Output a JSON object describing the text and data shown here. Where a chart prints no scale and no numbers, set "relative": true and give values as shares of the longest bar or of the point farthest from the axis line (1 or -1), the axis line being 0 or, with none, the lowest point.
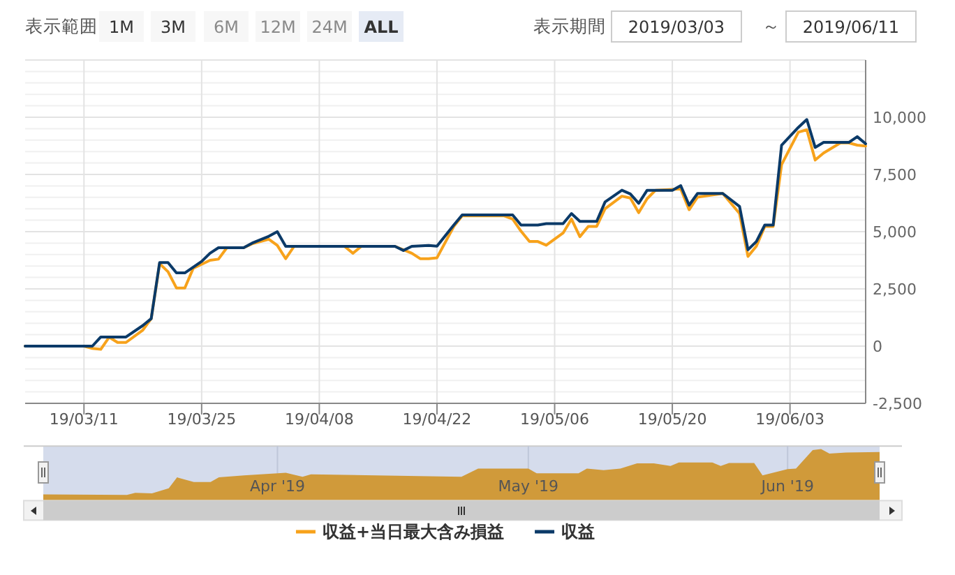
{
  "chart_data": [
    {
      "type": "line",
      "grid": true,
      "legend": "bottom",
      "annotations": [
        "表示範囲",
        "1M",
        "3M",
        "6M",
        "12M",
        "24M",
        "ALL",
        "表示期間",
        "2019/03/03",
        "～",
        "2019/06/11"
      ],
      "xlim": [
        "2019-03-04",
        "2019-06-12"
      ],
      "xticks": [
        {
          "value": "2019-03-11",
          "label": "19/03/11"
        },
        {
          "value": "2019-03-25",
          "label": "19/03/25"
        },
        {
          "value": "2019-04-08",
          "label": "19/04/08"
        },
        {
          "value": "2019-04-22",
          "label": "19/04/22"
        },
        {
          "value": "2019-05-06",
          "label": "19/05/06"
        },
        {
          "value": "2019-05-20",
          "label": "19/05/20"
        },
        {
          "value": "2019-06-03",
          "label": "19/06/03"
        }
      ],
      "ylim": [
        -2500,
        12500
      ],
      "yticks": [
        {
          "value": -2500,
          "label": "-2,500"
        },
        0,
        {
          "value": 2500,
          "label": "2,500"
        },
        {
          "value": 5000,
          "label": "5,000"
        },
        {
          "value": 7500,
          "label": "7,500"
        },
        {
          "value": 10000,
          "label": "10,000"
        },
        {
          "value": 12500,
          "label": null
        }
      ],
      "series": [
        {
          "name": "収益+当日最大含み損益",
          "color": "#f7a21b",
          "x": [
            "2019-03-04",
            "2019-03-11",
            "2019-03-12",
            "2019-03-13",
            "2019-03-14",
            "2019-03-15",
            "2019-03-16",
            "2019-03-18",
            "2019-03-19",
            "2019-03-20",
            "2019-03-21",
            "2019-03-22",
            "2019-03-23",
            "2019-03-24",
            "2019-03-26",
            "2019-03-27",
            "2019-03-28",
            "2019-03-30",
            "2019-03-31",
            "2019-04-02",
            "2019-04-03",
            "2019-04-04",
            "2019-04-05",
            "2019-04-11",
            "2019-04-12",
            "2019-04-13",
            "2019-04-17",
            "2019-04-19",
            "2019-04-20",
            "2019-04-21",
            "2019-04-22",
            "2019-04-24",
            "2019-04-25",
            "2019-04-30",
            "2019-05-01",
            "2019-05-02",
            "2019-05-03",
            "2019-05-04",
            "2019-05-05",
            "2019-05-07",
            "2019-05-08",
            "2019-05-09",
            "2019-05-10",
            "2019-05-11",
            "2019-05-12",
            "2019-05-14",
            "2019-05-15",
            "2019-05-16",
            "2019-05-17",
            "2019-05-18",
            "2019-05-21",
            "2019-05-22",
            "2019-05-23",
            "2019-05-26",
            "2019-05-28",
            "2019-05-29",
            "2019-05-30",
            "2019-05-31",
            "2019-06-01",
            "2019-06-02",
            "2019-06-04",
            "2019-06-05",
            "2019-06-06",
            "2019-06-07",
            "2019-06-09",
            "2019-06-10",
            "2019-06-11",
            "2019-06-12"
          ],
          "values": [
            0,
            0,
            -100,
            -140,
            390,
            160,
            160,
            700,
            1200,
            3600,
            3250,
            2540,
            2540,
            3400,
            3750,
            3800,
            4300,
            4300,
            4470,
            4670,
            4400,
            3820,
            4360,
            4360,
            4060,
            4360,
            4360,
            4060,
            3820,
            3820,
            3860,
            5230,
            5690,
            5690,
            5550,
            5020,
            4570,
            4570,
            4410,
            4940,
            5550,
            4780,
            5230,
            5230,
            6000,
            6550,
            6470,
            5830,
            6440,
            6810,
            6870,
            5960,
            6510,
            6670,
            5790,
            3920,
            4370,
            5230,
            5230,
            7930,
            9350,
            9450,
            8130,
            8440,
            8880,
            8880,
            8780,
            8740
          ]
        },
        {
          "name": "収益",
          "color": "#0b3a68",
          "x": [
            "2019-03-04",
            "2019-03-12",
            "2019-03-13",
            "2019-03-16",
            "2019-03-18",
            "2019-03-19",
            "2019-03-20",
            "2019-03-21",
            "2019-03-22",
            "2019-03-23",
            "2019-03-25",
            "2019-03-26",
            "2019-03-27",
            "2019-03-30",
            "2019-03-31",
            "2019-04-02",
            "2019-04-03",
            "2019-04-04",
            "2019-04-17",
            "2019-04-18",
            "2019-04-19",
            "2019-04-21",
            "2019-04-22",
            "2019-04-24",
            "2019-04-25",
            "2019-05-01",
            "2019-05-02",
            "2019-05-04",
            "2019-05-05",
            "2019-05-07",
            "2019-05-08",
            "2019-05-09",
            "2019-05-11",
            "2019-05-12",
            "2019-05-14",
            "2019-05-15",
            "2019-05-16",
            "2019-05-17",
            "2019-05-20",
            "2019-05-21",
            "2019-05-22",
            "2019-05-23",
            "2019-05-26",
            "2019-05-28",
            "2019-05-29",
            "2019-05-30",
            "2019-05-31",
            "2019-06-01",
            "2019-06-02",
            "2019-06-04",
            "2019-06-05",
            "2019-06-06",
            "2019-06-07",
            "2019-06-10",
            "2019-06-11",
            "2019-06-12"
          ],
          "values": [
            0,
            0,
            400,
            400,
            900,
            1200,
            3650,
            3650,
            3200,
            3200,
            3700,
            4060,
            4300,
            4300,
            4500,
            4800,
            5000,
            4360,
            4360,
            4180,
            4360,
            4400,
            4370,
            5290,
            5730,
            5730,
            5290,
            5290,
            5350,
            5350,
            5790,
            5450,
            5450,
            6300,
            6810,
            6650,
            6240,
            6810,
            6810,
            7010,
            6160,
            6670,
            6670,
            6100,
            4210,
            4570,
            5290,
            5290,
            8780,
            9560,
            9900,
            8680,
            8900,
            8900,
            9150,
            8840
          ]
        }
      ]
    },
    {
      "type": "area",
      "relative": true,
      "tick_labels": "x",
      "grid": "x",
      "color": "#d09a3a",
      "xlim": [
        "2019-03-04",
        "2019-06-12"
      ],
      "xticks": [
        {
          "value": "2019-04-01",
          "label": "Apr '19"
        },
        {
          "value": "2019-05-01",
          "label": "May '19"
        },
        {
          "value": "2019-06-01",
          "label": "Jun '19"
        }
      ],
      "x": [
        "2019-03-04",
        "2019-03-14",
        "2019-03-15",
        "2019-03-17",
        "2019-03-19",
        "2019-03-20",
        "2019-03-22",
        "2019-03-24",
        "2019-03-25",
        "2019-03-28",
        "2019-04-02",
        "2019-04-04",
        "2019-04-05",
        "2019-04-23",
        "2019-04-25",
        "2019-05-01",
        "2019-05-02",
        "2019-05-07",
        "2019-05-08",
        "2019-05-10",
        "2019-05-12",
        "2019-05-14",
        "2019-05-16",
        "2019-05-18",
        "2019-05-19",
        "2019-05-23",
        "2019-05-24",
        "2019-05-25",
        "2019-05-28",
        "2019-05-29",
        "2019-06-01",
        "2019-06-02",
        "2019-06-04",
        "2019-06-05",
        "2019-06-06",
        "2019-06-08",
        "2019-06-12"
      ],
      "values": [
        0.12,
        0.11,
        0.15,
        0.14,
        0.24,
        0.45,
        0.36,
        0.36,
        0.45,
        0.49,
        0.54,
        0.46,
        0.51,
        0.46,
        0.62,
        0.62,
        0.53,
        0.53,
        0.62,
        0.59,
        0.62,
        0.72,
        0.72,
        0.67,
        0.74,
        0.74,
        0.67,
        0.73,
        0.73,
        0.49,
        0.61,
        0.62,
        0.98,
        1,
        0.91,
        0.93,
        0.94
      ]
    }
  ]
}
